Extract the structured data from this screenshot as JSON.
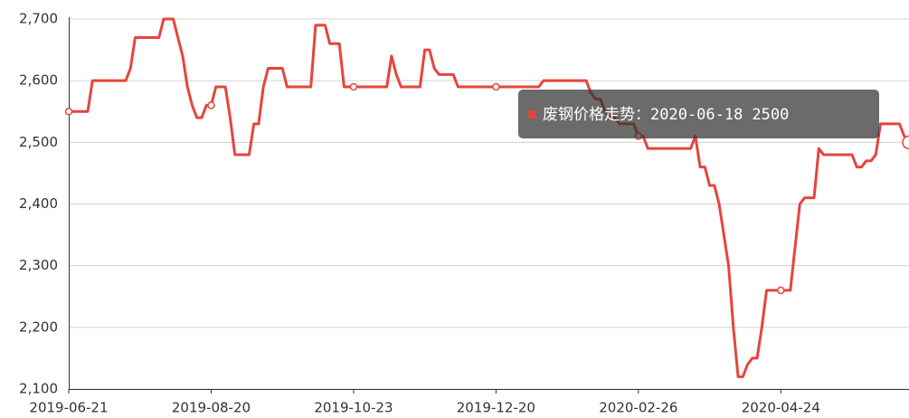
{
  "chart_data": {
    "type": "line",
    "categories": [
      "2019-06-21",
      null,
      null,
      null,
      null,
      null,
      null,
      null,
      null,
      null,
      null,
      null,
      null,
      null,
      null,
      null,
      null,
      null,
      null,
      null,
      null,
      null,
      null,
      null,
      null,
      null,
      null,
      null,
      null,
      null,
      "2019-08-20",
      null,
      null,
      null,
      null,
      null,
      null,
      null,
      null,
      null,
      null,
      null,
      null,
      null,
      null,
      null,
      null,
      null,
      null,
      null,
      null,
      null,
      null,
      null,
      null,
      null,
      null,
      null,
      null,
      null,
      "2019-10-23",
      null,
      null,
      null,
      null,
      null,
      null,
      null,
      null,
      null,
      null,
      null,
      null,
      null,
      null,
      null,
      null,
      null,
      null,
      null,
      null,
      null,
      null,
      null,
      null,
      null,
      null,
      null,
      null,
      null,
      "2019-12-20",
      null,
      null,
      null,
      null,
      null,
      null,
      null,
      null,
      null,
      null,
      null,
      null,
      null,
      null,
      null,
      null,
      null,
      null,
      null,
      null,
      null,
      null,
      null,
      null,
      null,
      null,
      null,
      null,
      null,
      "2020-02-26",
      null,
      null,
      null,
      null,
      null,
      null,
      null,
      null,
      null,
      null,
      null,
      null,
      null,
      null,
      null,
      null,
      null,
      null,
      null,
      null,
      null,
      null,
      null,
      null,
      null,
      null,
      null,
      null,
      null,
      "2020-04-24",
      null,
      null,
      null,
      null,
      null,
      null,
      null,
      null,
      null,
      null,
      null,
      null,
      null,
      null,
      null,
      null,
      null,
      null,
      null,
      null,
      null,
      null,
      null,
      null,
      null,
      null,
      null
    ],
    "series": [
      {
        "name": "废钢价格走势",
        "color": "#e5453c",
        "values": [
          2550,
          2550,
          2550,
          2550,
          2550,
          2600,
          2600,
          2600,
          2600,
          2600,
          2600,
          2600,
          2600,
          2620,
          2670,
          2670,
          2670,
          2670,
          2670,
          2670,
          2700,
          2700,
          2700,
          2670,
          2640,
          2590,
          2560,
          2540,
          2540,
          2560,
          2560,
          2590,
          2590,
          2590,
          2540,
          2480,
          2480,
          2480,
          2480,
          2530,
          2530,
          2590,
          2620,
          2620,
          2620,
          2620,
          2590,
          2590,
          2590,
          2590,
          2590,
          2590,
          2690,
          2690,
          2690,
          2660,
          2660,
          2660,
          2590,
          2590,
          2590,
          2590,
          2590,
          2590,
          2590,
          2590,
          2590,
          2590,
          2640,
          2610,
          2590,
          2590,
          2590,
          2590,
          2590,
          2650,
          2650,
          2620,
          2610,
          2610,
          2610,
          2610,
          2590,
          2590,
          2590,
          2590,
          2590,
          2590,
          2590,
          2590,
          2590,
          2590,
          2590,
          2590,
          2590,
          2590,
          2590,
          2590,
          2590,
          2590,
          2600,
          2600,
          2600,
          2600,
          2600,
          2600,
          2600,
          2600,
          2600,
          2600,
          2580,
          2570,
          2570,
          2550,
          2540,
          2540,
          2530,
          2530,
          2530,
          2530,
          2510,
          2510,
          2490,
          2490,
          2490,
          2490,
          2490,
          2490,
          2490,
          2490,
          2490,
          2490,
          2510,
          2460,
          2460,
          2430,
          2430,
          2400,
          2350,
          2300,
          2200,
          2120,
          2120,
          2140,
          2150,
          2150,
          2200,
          2260,
          2260,
          2260,
          2260,
          2260,
          2260,
          2330,
          2400,
          2410,
          2410,
          2410,
          2490,
          2480,
          2480,
          2480,
          2480,
          2480,
          2480,
          2480,
          2460,
          2460,
          2470,
          2470,
          2480,
          2530,
          2530,
          2530,
          2530,
          2530,
          2510,
          2500
        ]
      }
    ],
    "ylim": [
      2100,
      2700
    ],
    "yticks": [
      {
        "value": 2100,
        "label": "2,100"
      },
      {
        "value": 2200,
        "label": "2,200"
      },
      {
        "value": 2300,
        "label": "2,300"
      },
      {
        "value": 2400,
        "label": "2,400"
      },
      {
        "value": 2500,
        "label": "2,500"
      },
      {
        "value": 2600,
        "label": "2,600"
      },
      {
        "value": 2700,
        "label": "2,700"
      }
    ],
    "grid": true,
    "tooltip": {
      "label": "废钢价格走势：",
      "date": "2020-06-18",
      "value": 2500
    }
  }
}
